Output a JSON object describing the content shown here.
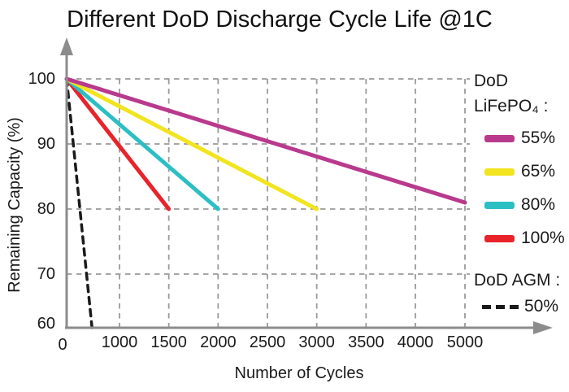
{
  "chart_data": {
    "type": "line",
    "title": "Different DoD Discharge Cycle Life @1C",
    "xlabel": "Number of Cycles",
    "ylabel": "Remaining Capacity (%)",
    "xlim": [
      0,
      5000
    ],
    "ylim": [
      60,
      100
    ],
    "grid": true,
    "grid_style": "dashed",
    "x_axis_note": "non-linear tick spacing, all ticks equally spaced",
    "x_ticks": {
      "values": [
        0,
        1000,
        1500,
        2000,
        2500,
        3000,
        3500,
        4000,
        5000
      ],
      "labels": [
        "0",
        "1000",
        "1500",
        "2000",
        "2500",
        "3000",
        "3500",
        "4000",
        "5000"
      ]
    },
    "y_ticks": {
      "values": [
        100,
        90,
        80,
        70,
        60
      ],
      "labels": [
        "100",
        "90",
        "80",
        "70",
        "60"
      ]
    },
    "legend": {
      "position": "right",
      "group1_title_line1": "DoD",
      "group1_title_line2": "LiFePO₄ :",
      "group2_title": "DoD AGM :"
    },
    "series": [
      {
        "name": "55%",
        "group": "DoD LiFePO4",
        "color": "#b93a8d",
        "style": "solid",
        "points": [
          [
            0,
            100
          ],
          [
            5000,
            81
          ]
        ]
      },
      {
        "name": "65%",
        "group": "DoD LiFePO4",
        "color": "#f2e41e",
        "style": "solid",
        "points": [
          [
            0,
            100
          ],
          [
            3000,
            80
          ]
        ]
      },
      {
        "name": "80%",
        "group": "DoD LiFePO4",
        "color": "#2bbfc4",
        "style": "solid",
        "points": [
          [
            0,
            100
          ],
          [
            2000,
            80
          ]
        ]
      },
      {
        "name": "100%",
        "group": "DoD LiFePO4",
        "color": "#e8232a",
        "style": "solid",
        "points": [
          [
            0,
            100
          ],
          [
            1500,
            80
          ]
        ]
      },
      {
        "name": "50%",
        "group": "DoD AGM",
        "color": "#1a1a1a",
        "style": "dashed",
        "points": [
          [
            0,
            100
          ],
          [
            480,
            60
          ]
        ]
      }
    ],
    "colors": {
      "axis": "#8c8c8c",
      "grid": "#9a9a9a",
      "text": "#1a1a1a",
      "background": "#ffffff"
    }
  }
}
